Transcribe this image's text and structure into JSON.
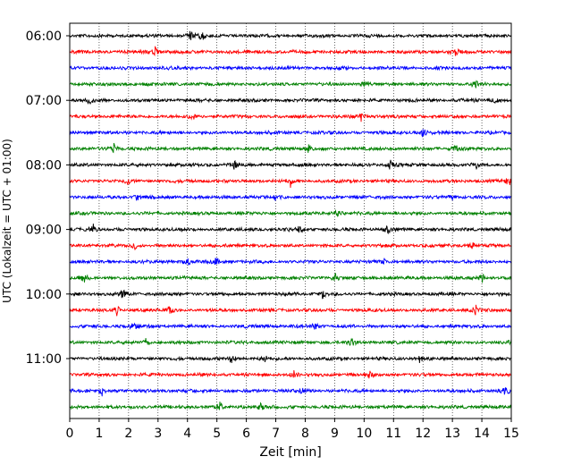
{
  "chart_data": {
    "type": "line",
    "title": "",
    "xlabel": "Zeit  [min]",
    "ylabel": "UTC (Lokalzeit = UTC + 01:00)",
    "xlim": [
      0,
      15
    ],
    "x_ticks": [
      0,
      1,
      2,
      3,
      4,
      5,
      6,
      7,
      8,
      9,
      10,
      11,
      12,
      13,
      14,
      15
    ],
    "x_grid": "dotted vertical lines at each minute",
    "y_tick_labels": [
      "06:00",
      "07:00",
      "08:00",
      "09:00",
      "10:00",
      "11:00"
    ],
    "trace_interval_minutes": 15,
    "start_time": "06:00",
    "trace_count": 24,
    "trace_colors": [
      "#000000",
      "#ff0000",
      "#0000ff",
      "#008000"
    ],
    "series": [
      {
        "start": "06:00",
        "color": "#000000",
        "events_min": [
          4.1,
          4.5
        ]
      },
      {
        "start": "06:15",
        "color": "#ff0000",
        "events_min": [
          2.9,
          13.1
        ]
      },
      {
        "start": "06:30",
        "color": "#0000ff",
        "events_min": []
      },
      {
        "start": "06:45",
        "color": "#008000",
        "events_min": [
          10.0,
          13.8
        ]
      },
      {
        "start": "07:00",
        "color": "#000000",
        "events_min": [
          0.7,
          14.5
        ]
      },
      {
        "start": "07:15",
        "color": "#ff0000",
        "events_min": [
          4.2,
          9.9
        ]
      },
      {
        "start": "07:30",
        "color": "#0000ff",
        "events_min": [
          12.0
        ]
      },
      {
        "start": "07:45",
        "color": "#008000",
        "events_min": [
          1.5,
          8.1,
          13.1
        ]
      },
      {
        "start": "08:00",
        "color": "#000000",
        "events_min": [
          5.6,
          10.9,
          13.8
        ]
      },
      {
        "start": "08:15",
        "color": "#ff0000",
        "events_min": [
          2.0,
          7.5,
          14.9
        ]
      },
      {
        "start": "08:30",
        "color": "#0000ff",
        "events_min": [
          2.3,
          7.0,
          13.0
        ]
      },
      {
        "start": "08:45",
        "color": "#008000",
        "events_min": [
          9.1
        ]
      },
      {
        "start": "09:00",
        "color": "#000000",
        "events_min": [
          0.8,
          7.8,
          10.8
        ]
      },
      {
        "start": "09:15",
        "color": "#ff0000",
        "events_min": [
          2.2,
          13.7
        ]
      },
      {
        "start": "09:30",
        "color": "#0000ff",
        "events_min": [
          4.0,
          5.0,
          10.7
        ]
      },
      {
        "start": "09:45",
        "color": "#008000",
        "events_min": [
          0.5,
          9.0,
          14.0
        ]
      },
      {
        "start": "10:00",
        "color": "#000000",
        "events_min": [
          1.8,
          8.6
        ]
      },
      {
        "start": "10:15",
        "color": "#ff0000",
        "events_min": [
          1.6,
          3.4,
          13.8
        ]
      },
      {
        "start": "10:30",
        "color": "#0000ff",
        "events_min": [
          2.2,
          8.3
        ]
      },
      {
        "start": "10:45",
        "color": "#008000",
        "events_min": [
          2.6,
          9.6,
          15.0
        ]
      },
      {
        "start": "11:00",
        "color": "#000000",
        "events_min": [
          5.5,
          6.6,
          11.9
        ]
      },
      {
        "start": "11:15",
        "color": "#ff0000",
        "events_min": [
          7.6,
          10.2
        ]
      },
      {
        "start": "11:30",
        "color": "#0000ff",
        "events_min": [
          1.1,
          7.9,
          14.8
        ]
      },
      {
        "start": "11:45",
        "color": "#008000",
        "events_min": [
          5.1,
          6.5
        ]
      }
    ]
  }
}
